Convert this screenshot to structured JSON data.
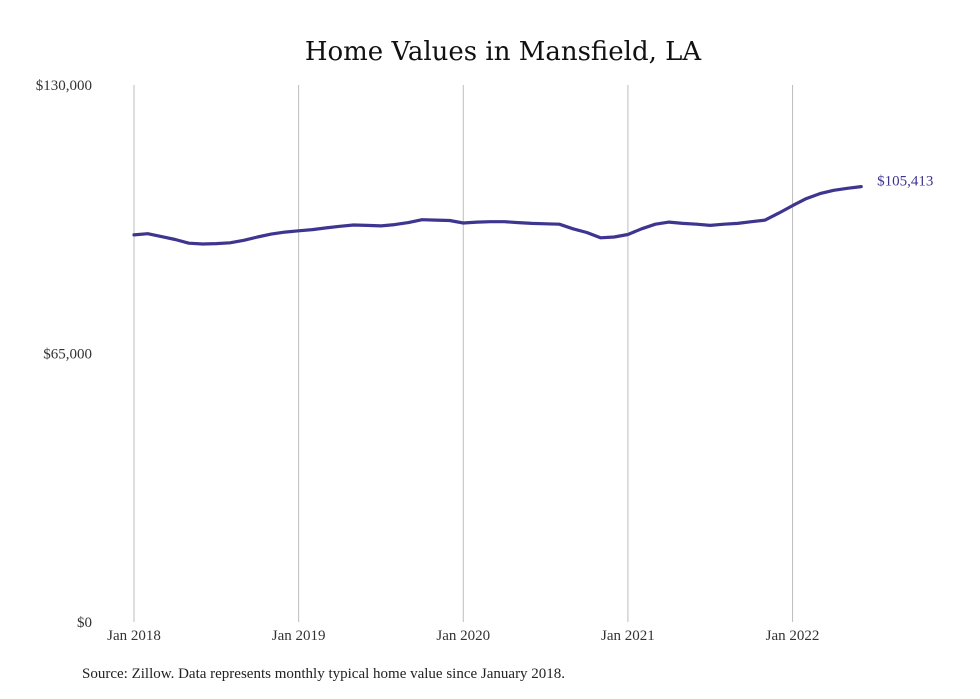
{
  "chart_data": {
    "type": "line",
    "title": "Home Values in Mansfield, LA",
    "xlabel": "",
    "ylabel": "",
    "ylim": [
      0,
      130000
    ],
    "y_ticks": [
      {
        "value": 0,
        "label": "$0"
      },
      {
        "value": 65000,
        "label": "$65,000"
      },
      {
        "value": 130000,
        "label": "$130,000"
      }
    ],
    "x_ticks": [
      {
        "index": 0,
        "label": "Jan 2018"
      },
      {
        "index": 12,
        "label": "Jan 2019"
      },
      {
        "index": 24,
        "label": "Jan 2020"
      },
      {
        "index": 36,
        "label": "Jan 2021"
      },
      {
        "index": 48,
        "label": "Jan 2022"
      }
    ],
    "vertical_grid": true,
    "horizontal_grid": false,
    "line_color": "#3d3590",
    "series": [
      {
        "x_start": "2018-01",
        "frequency": "monthly",
        "values": [
          93700,
          94000,
          93300,
          92600,
          91700,
          91500,
          91600,
          91800,
          92400,
          93200,
          93900,
          94400,
          94700,
          95000,
          95400,
          95800,
          96100,
          96000,
          95900,
          96200,
          96700,
          97400,
          97300,
          97200,
          96600,
          96800,
          96900,
          96900,
          96700,
          96500,
          96400,
          96300,
          95200,
          94300,
          93000,
          93200,
          93800,
          95200,
          96300,
          96800,
          96500,
          96300,
          96000,
          96300,
          96500,
          96900,
          97300,
          99000,
          100800,
          102500,
          103700,
          104500,
          105000,
          105413
        ]
      }
    ],
    "end_label": "$105,413"
  },
  "source": "Source: Zillow. Data represents monthly typical home value since January 2018."
}
